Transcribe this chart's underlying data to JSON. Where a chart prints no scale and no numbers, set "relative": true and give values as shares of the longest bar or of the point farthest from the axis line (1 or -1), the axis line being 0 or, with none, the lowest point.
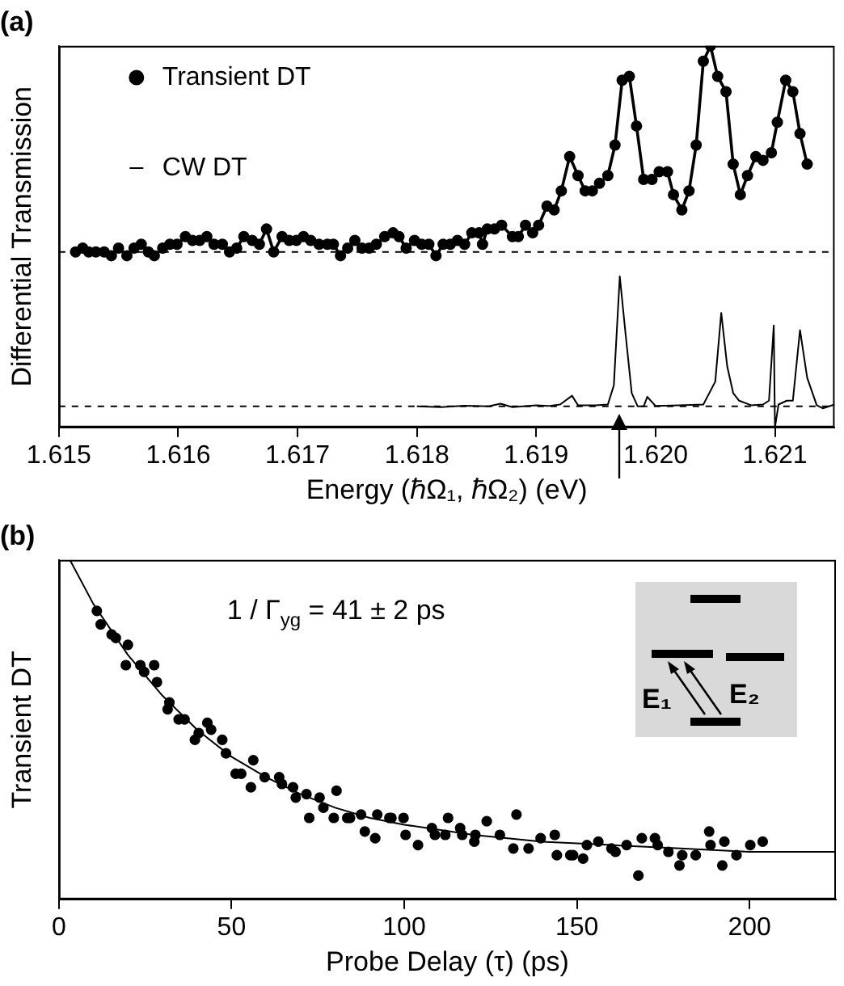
{
  "chart_data": [
    {
      "type": "line",
      "title": "(a)",
      "xlabel": "Energy (ℏΩ₁, ℏΩ₂) (eV)",
      "ylabel": "Differential Transmission",
      "relative": true,
      "xlim": [
        1.615,
        1.6215
      ],
      "xticks": [
        1.615,
        1.616,
        1.617,
        1.618,
        1.619,
        {
          "value": 1.62,
          "label": "1.620"
        },
        1.621
      ],
      "grid": false,
      "legend": "top left",
      "ref_lines": [
        {
          "axis": "y",
          "value": 0.46,
          "line_style": "dashed",
          "color": "#000000"
        },
        {
          "axis": "y",
          "value": 0.055,
          "line_style": "dashed",
          "color": "#000000"
        }
      ],
      "series": [
        {
          "name": "Transient DT",
          "color": "#000000",
          "marker": "circle",
          "x": [
            1.61514,
            1.6152,
            1.61525,
            1.61531,
            1.61538,
            1.61544,
            1.6155,
            1.61557,
            1.61563,
            1.61569,
            1.61575,
            1.6158,
            1.61587,
            1.61593,
            1.61599,
            1.61606,
            1.61612,
            1.61618,
            1.61624,
            1.6163,
            1.61637,
            1.61643,
            1.61649,
            1.61655,
            1.61662,
            1.61668,
            1.61674,
            1.6168,
            1.61687,
            1.61693,
            1.61699,
            1.61705,
            1.61711,
            1.61718,
            1.61725,
            1.6173,
            1.61736,
            1.61742,
            1.61748,
            1.61754,
            1.6176,
            1.61766,
            1.61773,
            1.6178,
            1.61785,
            1.61791,
            1.61798,
            1.61804,
            1.6181,
            1.61816,
            1.61822,
            1.61828,
            1.61834,
            1.6184,
            1.61846,
            1.61852,
            1.61855,
            1.61859,
            1.61865,
            1.61871,
            1.6188,
            1.61885,
            1.61891,
            1.61897,
            1.61902,
            1.61909,
            1.61915,
            1.61921,
            1.61928,
            1.61935,
            1.61941,
            1.61947,
            1.61953,
            1.6196,
            1.61966,
            1.61972,
            1.61978,
            1.61984,
            1.6199,
            1.61997,
            1.62003,
            1.6201,
            1.62015,
            1.62022,
            1.62028,
            1.62034,
            1.6204,
            1.62046,
            1.62052,
            1.62059,
            1.62065,
            1.62071,
            1.62077,
            1.62084,
            1.6209,
            1.62097,
            1.62102,
            1.62109,
            1.62115,
            1.62121,
            1.62127
          ],
          "values": [
            0.46,
            0.47,
            0.46,
            0.46,
            0.46,
            0.45,
            0.47,
            0.45,
            0.47,
            0.48,
            0.46,
            0.45,
            0.47,
            0.48,
            0.48,
            0.5,
            0.49,
            0.49,
            0.5,
            0.48,
            0.48,
            0.46,
            0.47,
            0.5,
            0.49,
            0.48,
            0.52,
            0.46,
            0.5,
            0.49,
            0.49,
            0.5,
            0.49,
            0.48,
            0.48,
            0.48,
            0.45,
            0.47,
            0.49,
            0.47,
            0.47,
            0.48,
            0.5,
            0.51,
            0.5,
            0.47,
            0.49,
            0.48,
            0.48,
            0.45,
            0.48,
            0.48,
            0.49,
            0.48,
            0.51,
            0.51,
            0.48,
            0.52,
            0.52,
            0.53,
            0.5,
            0.5,
            0.53,
            0.51,
            0.53,
            0.58,
            0.57,
            0.62,
            0.71,
            0.66,
            0.62,
            0.62,
            0.64,
            0.66,
            0.74,
            0.91,
            0.92,
            0.79,
            0.65,
            0.65,
            0.67,
            0.67,
            0.61,
            0.57,
            0.62,
            0.74,
            0.96,
            1,
            0.92,
            0.88,
            0.69,
            0.61,
            0.66,
            0.71,
            0.7,
            0.72,
            0.8,
            0.91,
            0.88,
            0.77,
            0.69
          ]
        },
        {
          "name": "CW DT",
          "color": "#000000",
          "marker": "none",
          "x": [
            1.618,
            1.6182,
            1.6184,
            1.6186,
            1.6187,
            1.6188,
            1.619,
            1.6191,
            1.6192,
            1.6193,
            1.61935,
            1.6195,
            1.6196,
            1.61965,
            1.6197,
            1.61975,
            1.6198,
            1.61985,
            1.6199,
            1.61993,
            1.62,
            1.6202,
            1.6204,
            1.6205,
            1.62055,
            1.6206,
            1.62065,
            1.6207,
            1.6208,
            1.6209,
            1.62095,
            1.62099,
            1.621,
            1.62103,
            1.6211,
            1.62115,
            1.62121,
            1.62127,
            1.62135,
            1.6214,
            1.6215
          ],
          "values": [
            0.055,
            0.053,
            0.057,
            0.055,
            0.062,
            0.053,
            0.058,
            0.056,
            0.06,
            0.083,
            0.058,
            0.058,
            0.06,
            0.11,
            0.396,
            0.24,
            0.09,
            0.055,
            0.055,
            0.08,
            0.056,
            0.058,
            0.06,
            0.12,
            0.3,
            0.16,
            0.09,
            0.07,
            0.058,
            0.06,
            0.07,
            0.267,
            0,
            0.06,
            0.07,
            0.07,
            0.255,
            0.13,
            0.058,
            0.05,
            0.06
          ]
        }
      ]
    },
    {
      "type": "scatter",
      "title": "(b)",
      "xlabel": "Probe Delay (τ) (ps)",
      "ylabel": "Transient DT",
      "relative": true,
      "xlim": [
        0,
        225
      ],
      "xticks": [
        0,
        50,
        100,
        150,
        200
      ],
      "grid": false,
      "annotations": [
        "1 / Γ$_{yg}$ = 41 ± 2 ps",
        "E₁",
        "E₂"
      ],
      "series": [
        {
          "color": "#000000",
          "marker": "circle",
          "x": [
            11.0,
            12.1,
            15.3,
            16.5,
            20.0,
            19.4,
            23.6,
            24.7,
            27.6,
            28.4,
            32.0,
            31.5,
            34.7,
            36.4,
            39.4,
            40.5,
            43.0,
            44.1,
            47.3,
            48.4,
            51.2,
            52.8,
            55.6,
            56.3,
            59.6,
            63.8,
            64.6,
            67.8,
            68.6,
            71.7,
            72.5,
            75.5,
            76.6,
            79.6,
            80.4,
            83.5,
            84.3,
            87.5,
            88.6,
            91.6,
            92.2,
            95.7,
            96.3,
            99.8,
            100.4,
            104.0,
            108.0,
            108.9,
            111.9,
            112.7,
            116.2,
            116.8,
            120.3,
            120.6,
            123.9,
            127.7,
            131.6,
            132.5,
            136.0,
            139.5,
            143.6,
            144.2,
            148.1,
            148.9,
            151.8,
            152.9,
            156.2,
            160.0,
            161.2,
            164.4,
            167.8,
            168.8,
            172.6,
            173.4,
            176.5,
            179.7,
            180.5,
            184.4,
            188.3,
            188.7,
            192.1,
            192.7,
            196.2,
            200.2,
            203.8
          ],
          "values": [
            0.85,
            0.81,
            0.78,
            0.77,
            0.75,
            0.69,
            0.69,
            0.67,
            0.69,
            0.64,
            0.58,
            0.56,
            0.53,
            0.53,
            0.47,
            0.49,
            0.52,
            0.5,
            0.47,
            0.43,
            0.37,
            0.37,
            0.33,
            0.41,
            0.36,
            0.36,
            0.34,
            0.33,
            0.3,
            0.31,
            0.24,
            0.3,
            0.27,
            0.24,
            0.32,
            0.24,
            0.24,
            0.25,
            0.2,
            0.18,
            0.25,
            0.24,
            0.24,
            0.24,
            0.19,
            0.16,
            0.21,
            0.19,
            0.19,
            0.24,
            0.21,
            0.19,
            0.17,
            0.19,
            0.23,
            0.19,
            0.15,
            0.25,
            0.15,
            0.18,
            0.19,
            0.13,
            0.13,
            0.13,
            0.12,
            0.16,
            0.17,
            0.15,
            0.14,
            0.16,
            0.07,
            0.18,
            0.18,
            0.16,
            0.14,
            0.1,
            0.13,
            0.13,
            0.2,
            0.16,
            0.1,
            0.17,
            0.13,
            0.16,
            0.17
          ]
        },
        {
          "type": "line",
          "color": "#000000",
          "marker": "none",
          "x": [
            3.2,
            10,
            20,
            30,
            40,
            50,
            60,
            70,
            80,
            90,
            100,
            120,
            140,
            160,
            180,
            200,
            225
          ],
          "values": [
            1,
            0.87,
            0.72,
            0.6,
            0.5,
            0.42,
            0.36,
            0.31,
            0.27,
            0.24,
            0.22,
            0.19,
            0.17,
            0.16,
            0.15,
            0.14,
            0.14
          ]
        }
      ]
    }
  ]
}
